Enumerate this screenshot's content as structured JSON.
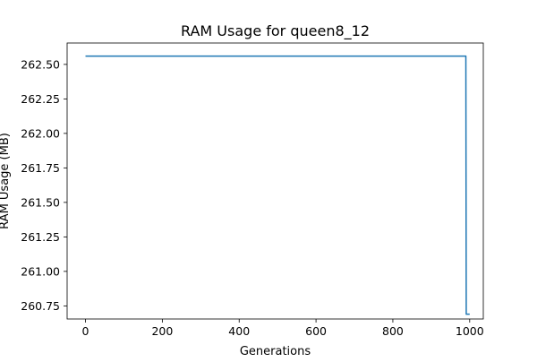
{
  "chart_data": {
    "type": "line",
    "title": "RAM Usage for queen8_12",
    "xlabel": "Generations",
    "ylabel": "RAM Usage (MB)",
    "xlim": [
      -47.8,
      1035.4
    ],
    "ylim": [
      260.655,
      262.655
    ],
    "xticks": [
      0,
      200,
      400,
      600,
      800,
      1000
    ],
    "yticks": [
      260.75,
      261.0,
      261.25,
      261.5,
      261.75,
      262.0,
      262.25,
      262.5
    ],
    "ytick_labels": [
      "260.75",
      "261.00",
      "261.25",
      "261.50",
      "261.75",
      "262.00",
      "262.25",
      "262.50"
    ],
    "grid": false,
    "series": [
      {
        "color": "#1f77b4",
        "x": [
          0,
          990,
          991,
          1000
        ],
        "y": [
          262.56,
          262.56,
          260.69,
          260.69
        ]
      }
    ]
  }
}
